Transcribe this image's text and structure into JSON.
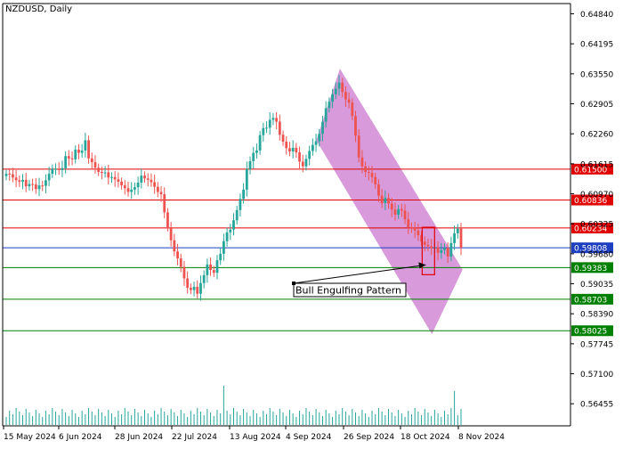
{
  "chart_data": {
    "type": "candlestick",
    "title": "NZDUSD, Daily",
    "symbol": "NZDUSD",
    "timeframe": "Daily",
    "ylim": [
      0.5598,
      0.6506
    ],
    "grid": false,
    "colors": {
      "bull": "#26a69a",
      "bear": "#ef5350",
      "volume": "#26a69a",
      "channel": "#d48fd6",
      "resistance": "#e00000",
      "support": "#008000",
      "current": "#1e3fbf",
      "axis": "#000000",
      "text": "#000000"
    },
    "price_ticks": [
      "0.64840",
      "0.64195",
      "0.63550",
      "0.62905",
      "0.62260",
      "0.61615",
      "0.60970",
      "0.60325",
      "0.59680",
      "0.59035",
      "0.58390",
      "0.57745",
      "0.57100",
      "0.56455"
    ],
    "price_tick_values": [
      0.6484,
      0.64195,
      0.6355,
      0.62905,
      0.6226,
      0.61615,
      0.6097,
      0.60325,
      0.5968,
      0.59035,
      0.5839,
      0.57745,
      0.571,
      0.56455
    ],
    "date_ticks": [
      "15 May 2024",
      "6 Jun 2024",
      "28 Jun 2024",
      "22 Jul 2024",
      "13 Aug 2024",
      "4 Sep 2024",
      "26 Sep 2024",
      "18 Oct 2024",
      "8 Nov 2024"
    ],
    "horizontal_levels": [
      {
        "label": "0.61500",
        "value": 0.615,
        "role": "resistance"
      },
      {
        "label": "0.60836",
        "value": 0.60836,
        "role": "resistance"
      },
      {
        "label": "0.60234",
        "value": 0.60234,
        "role": "resistance"
      },
      {
        "label": "0.59808",
        "value": 0.59808,
        "role": "current"
      },
      {
        "label": "0.59383",
        "value": 0.59383,
        "role": "support"
      },
      {
        "label": "0.58703",
        "value": 0.58703,
        "role": "support"
      },
      {
        "label": "0.58025",
        "value": 0.58025,
        "role": "support"
      }
    ],
    "channel": {
      "upper_start": {
        "date": "2024-09-20",
        "price": 0.6212
      },
      "upper_end": {
        "date": "2024-11-12",
        "price": 0.5946
      },
      "lower_start": {
        "date": "2024-09-30",
        "price": 0.6366
      },
      "lower_end": {
        "date": "2024-11-21",
        "price": 0.5934
      },
      "bottom_tip": {
        "date": "2024-11-08",
        "price": 0.5795
      }
    },
    "annotation": {
      "text": "Bull Engulfing Pattern",
      "highlight_dates": [
        "2024-11-05",
        "2024-11-08"
      ],
      "highlight_range": [
        0.5923,
        0.6025
      ]
    },
    "ohlc_closes": [
      0.614,
      0.6139,
      0.6132,
      0.6126,
      0.6123,
      0.6127,
      0.6113,
      0.6118,
      0.6117,
      0.6107,
      0.6115,
      0.6114,
      0.6126,
      0.614,
      0.6151,
      0.6151,
      0.6148,
      0.6152,
      0.6178,
      0.6173,
      0.6171,
      0.6192,
      0.6185,
      0.619,
      0.6212,
      0.6173,
      0.6165,
      0.6153,
      0.6144,
      0.6142,
      0.6143,
      0.6132,
      0.6133,
      0.6128,
      0.6123,
      0.6115,
      0.6109,
      0.6101,
      0.6106,
      0.6111,
      0.6121,
      0.6136,
      0.613,
      0.6127,
      0.6122,
      0.6112,
      0.6101,
      0.6096,
      0.6057,
      0.6025,
      0.5997,
      0.5973,
      0.5958,
      0.594,
      0.5915,
      0.5895,
      0.589,
      0.5897,
      0.5882,
      0.5905,
      0.5922,
      0.5945,
      0.5933,
      0.5927,
      0.5954,
      0.5968,
      0.5995,
      0.6014,
      0.602,
      0.604,
      0.6062,
      0.6086,
      0.6106,
      0.615,
      0.6167,
      0.6185,
      0.619,
      0.6223,
      0.6238,
      0.6239,
      0.6256,
      0.626,
      0.6252,
      0.6224,
      0.6209,
      0.6195,
      0.6188,
      0.6196,
      0.6186,
      0.6166,
      0.6156,
      0.6172,
      0.6189,
      0.6202,
      0.621,
      0.6226,
      0.6252,
      0.6281,
      0.6295,
      0.6311,
      0.6323,
      0.6336,
      0.6316,
      0.63,
      0.6293,
      0.6264,
      0.6222,
      0.6175,
      0.6156,
      0.6144,
      0.6142,
      0.6133,
      0.6117,
      0.6093,
      0.6077,
      0.6088,
      0.6076,
      0.6063,
      0.6052,
      0.6064,
      0.6061,
      0.6042,
      0.6025,
      0.6024,
      0.6018,
      0.6008,
      0.5994,
      0.5987,
      0.5984,
      0.598,
      0.5982,
      0.597,
      0.5976,
      0.5981,
      0.5962,
      0.5991,
      0.6012,
      0.6022,
      0.5981
    ],
    "volume_note": "Tick volume histogram"
  }
}
